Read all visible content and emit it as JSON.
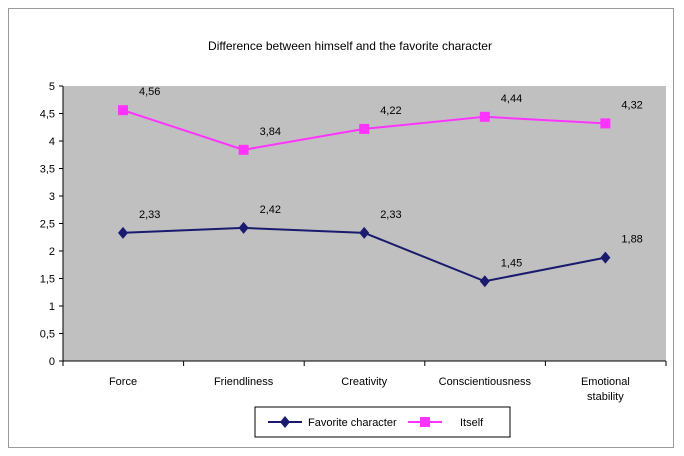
{
  "chart_data": {
    "type": "line",
    "title": "Difference between himself and the favorite character",
    "categories": [
      "Force",
      "Friendliness",
      "Creativity",
      "Conscientiousness",
      "Emotional stability"
    ],
    "category_lines": [
      [
        "Force"
      ],
      [
        "Friendliness"
      ],
      [
        "Creativity"
      ],
      [
        "Conscientiousness"
      ],
      [
        "Emotional",
        "stability"
      ]
    ],
    "y_ticks": [
      "0",
      "0,5",
      "1",
      "1,5",
      "2",
      "2,5",
      "3",
      "3,5",
      "4",
      "4,5",
      "5"
    ],
    "ylim": [
      0,
      5
    ],
    "grid": false,
    "legend": "bottom",
    "series": [
      {
        "name": "Favorite character",
        "values": [
          2.33,
          2.42,
          2.33,
          1.45,
          1.88
        ],
        "labels": [
          "2,33",
          "2,42",
          "2,33",
          "1,45",
          "1,88"
        ],
        "color": "#1a1a6e",
        "marker": "diamond"
      },
      {
        "name": "Itself",
        "values": [
          4.56,
          3.84,
          4.22,
          4.44,
          4.32
        ],
        "labels": [
          "4,56",
          "3,84",
          "4,22",
          "4,44",
          "4,32"
        ],
        "color": "#ff33ff",
        "marker": "square"
      }
    ],
    "plot_background": "#c0c0c0"
  }
}
